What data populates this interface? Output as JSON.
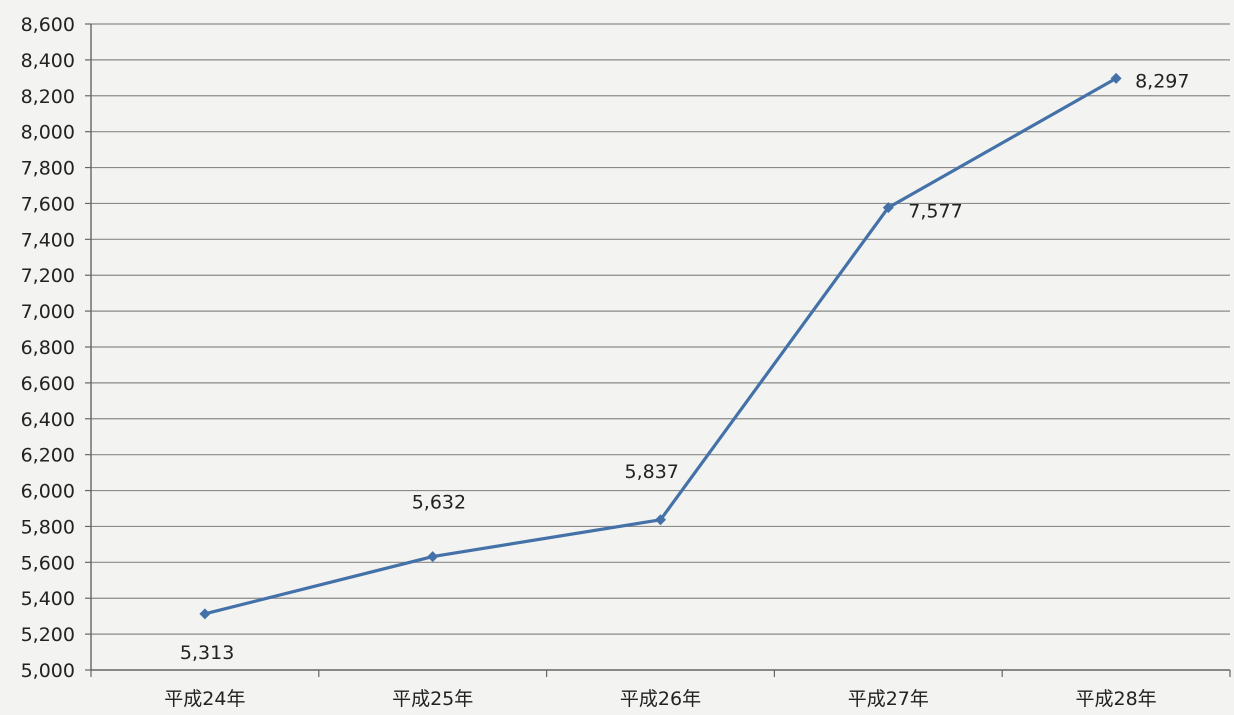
{
  "chart_data": {
    "type": "line",
    "categories": [
      "平成24年",
      "平成25年",
      "平成26年",
      "平成27年",
      "平成28年"
    ],
    "series": [
      {
        "values": [
          5313,
          5632,
          5837,
          7577,
          8297
        ]
      }
    ],
    "data_labels": [
      "5,313",
      "5,632",
      "5,837",
      "7,577",
      "8,297"
    ],
    "title": "",
    "xlabel": "",
    "ylabel": "",
    "ylim": [
      5000,
      8600
    ],
    "ytick_step": 200,
    "y_tick_labels": [
      "5,000",
      "5,200",
      "5,400",
      "5,600",
      "5,800",
      "6,000",
      "6,200",
      "6,400",
      "6,600",
      "6,800",
      "7,000",
      "7,200",
      "7,400",
      "7,600",
      "7,800",
      "8,000",
      "8,200",
      "8,400",
      "8,600"
    ],
    "grid": true,
    "legend": "none",
    "colors": {
      "line": "#4472a8",
      "marker": "#4472a8",
      "grid": "#8a8a8a",
      "axis": "#666666",
      "background": "#f3f3f1"
    }
  }
}
